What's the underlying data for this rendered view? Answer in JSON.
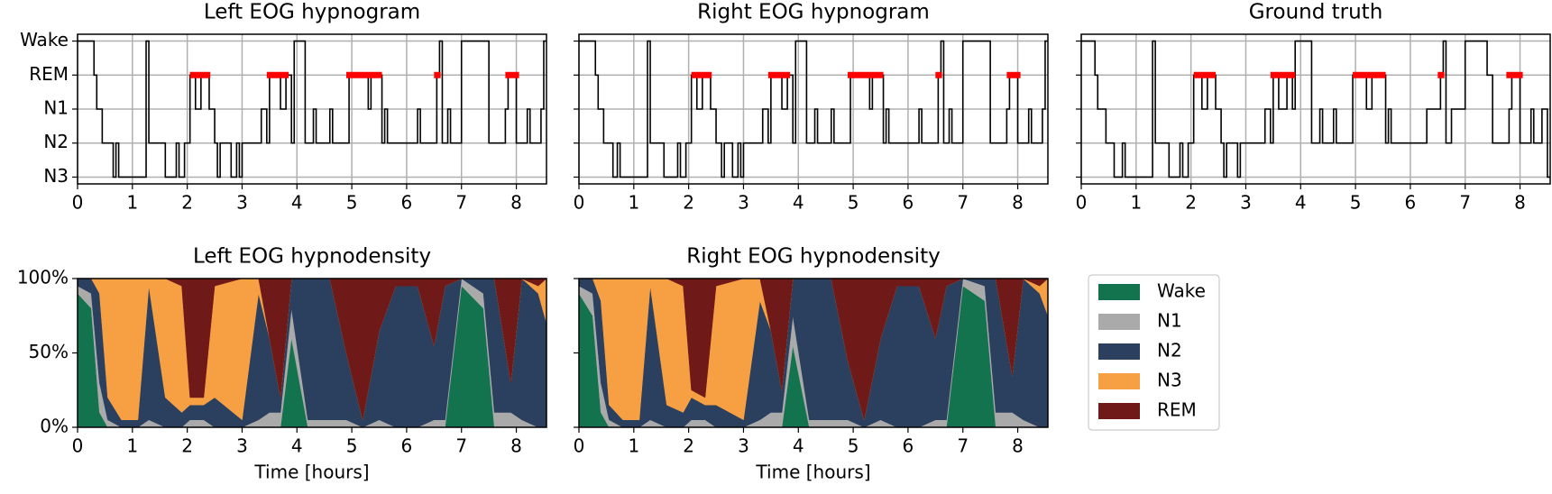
{
  "chart_data": [
    {
      "type": "hypnogram",
      "title": "Left EOG hypnogram",
      "xlim": [
        0,
        8.55
      ],
      "ylim": [
        -0.2,
        4.2
      ],
      "xticks": [
        0,
        1,
        2,
        3,
        4,
        5,
        6,
        7,
        8
      ],
      "yticks": [
        {
          "value": 4,
          "label": "Wake"
        },
        {
          "value": 3,
          "label": "REM"
        },
        {
          "value": 2,
          "label": "N1"
        },
        {
          "value": 1,
          "label": "N2"
        },
        {
          "value": 0,
          "label": "N3"
        }
      ],
      "grid": true,
      "color": "#000000",
      "x": [
        0,
        0.3,
        0.35,
        0.45,
        0.65,
        0.7,
        0.75,
        1.25,
        1.3,
        1.6,
        1.8,
        1.85,
        1.95,
        2.05,
        2.15,
        2.25,
        2.4,
        2.5,
        2.55,
        2.6,
        2.8,
        2.9,
        2.95,
        3.0,
        3.35,
        3.45,
        3.5,
        3.7,
        3.8,
        3.9,
        3.95,
        4.15,
        4.3,
        4.35,
        4.6,
        4.65,
        4.95,
        5.3,
        5.35,
        5.55,
        5.6,
        5.65,
        6.2,
        6.25,
        6.55,
        6.6,
        6.65,
        6.75,
        6.8,
        7.0,
        7.5,
        7.8,
        7.85,
        8.0,
        8.2,
        8.25,
        8.45,
        8.5
      ],
      "values": [
        4,
        3,
        2,
        1,
        0,
        1,
        0,
        4,
        1,
        0,
        1,
        0,
        1,
        3,
        2,
        3,
        2,
        1,
        0,
        1,
        0,
        1,
        0,
        1,
        2,
        1,
        3,
        2,
        3,
        1,
        4,
        1,
        2,
        1,
        2,
        1,
        3,
        2,
        3,
        1,
        2,
        1,
        2,
        1,
        3,
        4,
        1,
        2,
        1,
        4,
        1,
        2,
        3,
        1,
        2,
        1,
        2,
        4
      ],
      "highlight": {
        "color": "#ff0000",
        "y": 3,
        "segments": [
          [
            2.05,
            2.42
          ],
          [
            3.45,
            3.85
          ],
          [
            4.9,
            5.55
          ],
          [
            6.5,
            6.62
          ],
          [
            7.8,
            8.05
          ]
        ]
      }
    },
    {
      "type": "hypnogram",
      "title": "Right EOG hypnogram",
      "xlim": [
        0,
        8.55
      ],
      "ylim": [
        -0.2,
        4.2
      ],
      "xticks": [
        0,
        1,
        2,
        3,
        4,
        5,
        6,
        7,
        8
      ],
      "yticks": [
        4,
        3,
        2,
        1,
        0
      ],
      "grid": true,
      "color": "#000000",
      "x": [
        0,
        0.3,
        0.35,
        0.45,
        0.62,
        0.7,
        0.75,
        1.25,
        1.3,
        1.55,
        1.8,
        1.85,
        1.95,
        2.05,
        2.15,
        2.25,
        2.4,
        2.5,
        2.6,
        2.65,
        2.8,
        2.9,
        2.95,
        3.0,
        3.35,
        3.45,
        3.5,
        3.7,
        3.8,
        3.9,
        3.95,
        4.15,
        4.3,
        4.35,
        4.6,
        4.65,
        4.95,
        5.3,
        5.35,
        5.55,
        5.6,
        5.65,
        6.2,
        6.25,
        6.55,
        6.6,
        6.65,
        6.75,
        6.8,
        7.0,
        7.5,
        7.8,
        7.85,
        8.0,
        8.2,
        8.25,
        8.45,
        8.5
      ],
      "values": [
        4,
        3,
        2,
        1,
        0,
        1,
        0,
        4,
        1,
        0,
        1,
        0,
        1,
        3,
        2,
        3,
        2,
        1,
        0,
        1,
        0,
        1,
        0,
        1,
        2,
        1,
        3,
        2,
        3,
        1,
        4,
        1,
        2,
        1,
        2,
        1,
        3,
        2,
        3,
        1,
        2,
        1,
        2,
        1,
        3,
        4,
        1,
        2,
        1,
        4,
        1,
        2,
        3,
        1,
        2,
        1,
        2,
        4
      ],
      "highlight": {
        "color": "#ff0000",
        "y": 3,
        "segments": [
          [
            2.05,
            2.42
          ],
          [
            3.45,
            3.85
          ],
          [
            4.9,
            5.55
          ],
          [
            6.5,
            6.62
          ],
          [
            7.8,
            8.05
          ]
        ]
      }
    },
    {
      "type": "hypnogram",
      "title": "Ground truth",
      "xlim": [
        0,
        8.55
      ],
      "ylim": [
        -0.2,
        4.2
      ],
      "xticks": [
        0,
        1,
        2,
        3,
        4,
        5,
        6,
        7,
        8
      ],
      "yticks": [
        4,
        3,
        2,
        1,
        0
      ],
      "grid": true,
      "color": "#000000",
      "x": [
        0,
        0.25,
        0.3,
        0.45,
        0.6,
        0.75,
        0.8,
        1.3,
        1.35,
        1.6,
        1.8,
        1.85,
        1.95,
        2.05,
        2.2,
        2.3,
        2.45,
        2.55,
        2.6,
        2.65,
        2.85,
        2.9,
        3.0,
        3.35,
        3.45,
        3.5,
        3.6,
        3.75,
        3.85,
        3.9,
        4.2,
        4.35,
        4.4,
        4.6,
        4.65,
        4.95,
        5.2,
        5.3,
        5.55,
        5.6,
        5.65,
        6.3,
        6.55,
        6.6,
        6.65,
        6.75,
        7.0,
        7.4,
        7.5,
        7.8,
        7.85,
        8.0,
        8.2,
        8.25,
        8.4,
        8.5
      ],
      "values": [
        4,
        3,
        2,
        1,
        0,
        1,
        0,
        4,
        1,
        0,
        1,
        0,
        1,
        3,
        2,
        3,
        2,
        1,
        0,
        1,
        0,
        1,
        1,
        2,
        1,
        3,
        2,
        3,
        2,
        4,
        1,
        2,
        1,
        2,
        1,
        3,
        2,
        3,
        1,
        2,
        1,
        2,
        3,
        4,
        1,
        2,
        4,
        3,
        1,
        2,
        3,
        1,
        2,
        1,
        2,
        0
      ],
      "highlight": {
        "color": "#ff0000",
        "y": 3,
        "segments": [
          [
            2.05,
            2.45
          ],
          [
            3.45,
            3.9
          ],
          [
            4.95,
            5.55
          ],
          [
            6.5,
            6.62
          ],
          [
            7.75,
            8.05
          ]
        ]
      }
    },
    {
      "type": "stacked-area",
      "title": "Left EOG hypnodensity",
      "xlabel": "Time [hours]",
      "xlim": [
        0,
        8.55
      ],
      "ylim": [
        0,
        100
      ],
      "xticks": [
        0,
        1,
        2,
        3,
        4,
        5,
        6,
        7,
        8
      ],
      "yticks": [
        {
          "value": 0,
          "label": "0%"
        },
        {
          "value": 50,
          "label": "50%"
        },
        {
          "value": 100,
          "label": "100%"
        }
      ],
      "legend": "outside right",
      "x": [
        0,
        0.25,
        0.4,
        0.55,
        0.8,
        1.1,
        1.3,
        1.6,
        1.9,
        2.05,
        2.3,
        2.5,
        3.0,
        3.3,
        3.5,
        3.7,
        3.9,
        4.2,
        4.6,
        4.9,
        5.2,
        5.5,
        5.8,
        6.2,
        6.5,
        6.7,
        7.0,
        7.4,
        7.6,
        7.9,
        8.1,
        8.4,
        8.55
      ],
      "series": [
        {
          "name": "Wake",
          "color": "#13734f",
          "values": [
            90,
            80,
            10,
            0,
            0,
            0,
            0,
            0,
            0,
            0,
            0,
            0,
            0,
            0,
            0,
            0,
            60,
            0,
            0,
            0,
            0,
            0,
            0,
            0,
            0,
            0,
            95,
            80,
            0,
            0,
            0,
            0,
            0
          ]
        },
        {
          "name": "N1",
          "color": "#aaaaaa",
          "values": [
            5,
            10,
            20,
            5,
            0,
            0,
            5,
            0,
            0,
            5,
            5,
            0,
            0,
            5,
            10,
            10,
            20,
            5,
            5,
            5,
            0,
            5,
            0,
            0,
            5,
            5,
            5,
            10,
            10,
            10,
            5,
            0,
            0
          ]
        },
        {
          "name": "N2",
          "color": "#2b3f5f",
          "values": [
            5,
            10,
            60,
            15,
            5,
            5,
            90,
            20,
            10,
            10,
            10,
            20,
            5,
            85,
            50,
            10,
            20,
            95,
            95,
            45,
            5,
            60,
            95,
            95,
            50,
            90,
            0,
            10,
            90,
            20,
            95,
            90,
            70
          ]
        },
        {
          "name": "N3",
          "color": "#f7a043",
          "values": [
            0,
            0,
            10,
            80,
            95,
            95,
            5,
            80,
            85,
            5,
            5,
            75,
            95,
            10,
            0,
            0,
            0,
            0,
            0,
            0,
            0,
            0,
            0,
            0,
            0,
            0,
            0,
            0,
            0,
            0,
            0,
            5,
            30
          ]
        },
        {
          "name": "REM",
          "color": "#6f1a18",
          "values": [
            0,
            0,
            0,
            0,
            0,
            0,
            0,
            0,
            5,
            80,
            80,
            5,
            0,
            0,
            40,
            80,
            0,
            0,
            0,
            50,
            95,
            35,
            5,
            5,
            45,
            5,
            0,
            0,
            0,
            70,
            0,
            5,
            0
          ]
        }
      ]
    },
    {
      "type": "stacked-area",
      "title": "Right EOG hypnodensity",
      "xlabel": "Time [hours]",
      "xlim": [
        0,
        8.55
      ],
      "ylim": [
        0,
        100
      ],
      "xticks": [
        0,
        1,
        2,
        3,
        4,
        5,
        6,
        7,
        8
      ],
      "yticks": [
        0,
        50,
        100
      ],
      "x": [
        0,
        0.25,
        0.4,
        0.55,
        0.8,
        1.1,
        1.3,
        1.6,
        1.9,
        2.05,
        2.3,
        2.5,
        3.0,
        3.3,
        3.5,
        3.7,
        3.9,
        4.2,
        4.6,
        4.9,
        5.2,
        5.5,
        5.8,
        6.2,
        6.5,
        6.7,
        7.0,
        7.4,
        7.6,
        7.9,
        8.1,
        8.4,
        8.55
      ],
      "series": [
        {
          "color": "#13734f",
          "values": [
            90,
            75,
            10,
            0,
            0,
            0,
            0,
            0,
            0,
            0,
            0,
            0,
            0,
            0,
            0,
            0,
            55,
            0,
            0,
            0,
            0,
            0,
            0,
            0,
            0,
            0,
            95,
            85,
            0,
            0,
            0,
            0,
            0
          ]
        },
        {
          "color": "#aaaaaa",
          "values": [
            5,
            15,
            20,
            5,
            0,
            0,
            5,
            0,
            0,
            5,
            5,
            0,
            0,
            5,
            10,
            10,
            20,
            5,
            5,
            5,
            0,
            5,
            0,
            0,
            5,
            5,
            5,
            10,
            10,
            10,
            5,
            0,
            0
          ]
        },
        {
          "color": "#2b3f5f",
          "values": [
            5,
            10,
            55,
            10,
            5,
            5,
            90,
            15,
            10,
            15,
            10,
            15,
            5,
            80,
            55,
            15,
            25,
            95,
            95,
            40,
            5,
            55,
            95,
            95,
            55,
            90,
            0,
            5,
            90,
            25,
            95,
            90,
            75
          ]
        },
        {
          "color": "#f7a043",
          "values": [
            0,
            0,
            15,
            85,
            95,
            95,
            5,
            85,
            85,
            5,
            5,
            80,
            95,
            15,
            0,
            0,
            0,
            0,
            0,
            0,
            0,
            0,
            0,
            0,
            0,
            0,
            0,
            0,
            0,
            0,
            0,
            5,
            25
          ]
        },
        {
          "color": "#6f1a18",
          "values": [
            0,
            0,
            0,
            0,
            0,
            0,
            0,
            0,
            5,
            75,
            80,
            5,
            0,
            0,
            35,
            75,
            0,
            0,
            0,
            55,
            95,
            40,
            5,
            5,
            40,
            5,
            0,
            0,
            0,
            65,
            0,
            5,
            0
          ]
        }
      ]
    }
  ]
}
